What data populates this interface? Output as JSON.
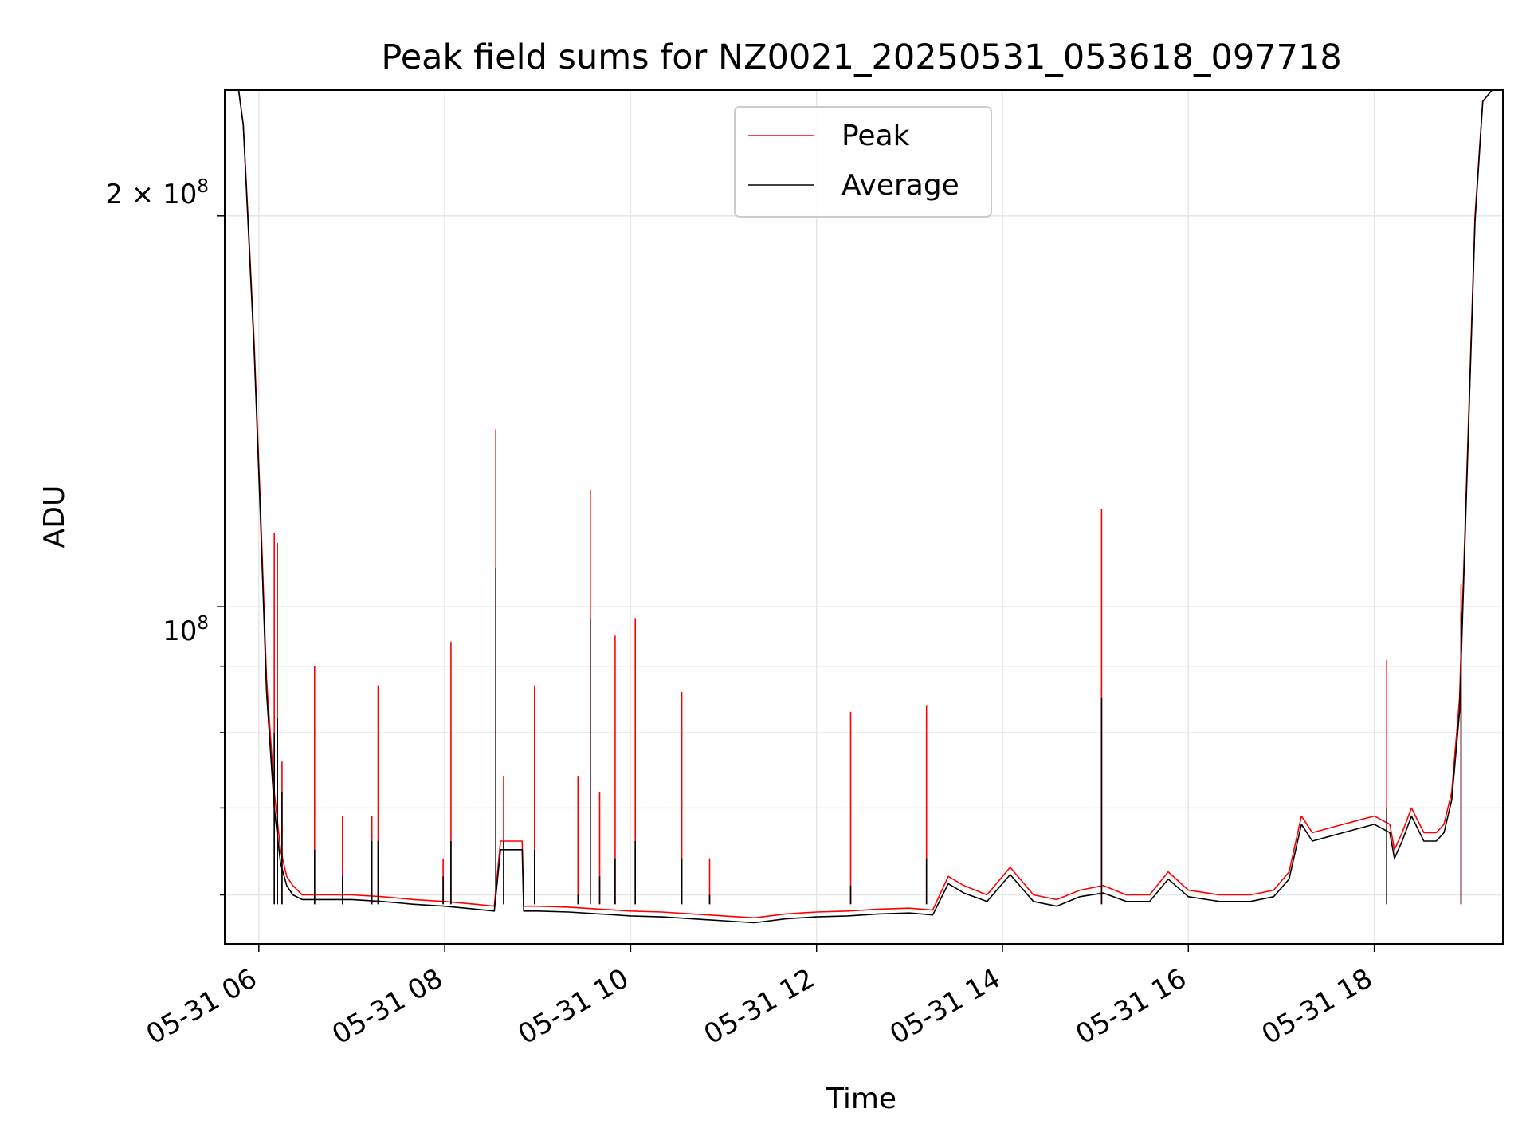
{
  "chart_data": {
    "type": "line",
    "title": "Peak field sums for NZ0021_20250531_053618_097718",
    "xlabel": "Time",
    "ylabel": "ADU",
    "yscale": "log",
    "xlim": [
      "2025-05-31 05:38",
      "2025-05-31 19:23"
    ],
    "ylim": [
      55000000,
      250000000
    ],
    "x_ticks": [
      "05-31 06",
      "05-31 08",
      "05-31 10",
      "05-31 12",
      "05-31 14",
      "05-31 16",
      "05-31 18"
    ],
    "y_tick_labels": [
      "2 × 10^8",
      "10^8"
    ],
    "grid": true,
    "legend_position": "top-center",
    "series": [
      {
        "name": "Peak",
        "color": "#ff0000",
        "x": [
          "2025-05-31 05:36",
          "2025-05-31 05:47",
          "2025-05-31 05:50",
          "2025-05-31 05:53",
          "2025-05-31 05:57",
          "2025-05-31 06:01",
          "2025-05-31 06:05",
          "2025-05-31 06:10",
          "2025-05-31 06:14",
          "2025-05-31 06:18",
          "2025-05-31 06:22",
          "2025-05-31 06:28",
          "2025-05-31 06:35",
          "2025-05-31 06:45",
          "2025-05-31 07:00",
          "2025-05-31 07:20",
          "2025-05-31 07:40",
          "2025-05-31 08:00",
          "2025-05-31 08:20",
          "2025-05-31 08:32",
          "2025-05-31 08:36",
          "2025-05-31 08:42",
          "2025-05-31 08:50",
          "2025-05-31 08:51",
          "2025-05-31 09:00",
          "2025-05-31 09:20",
          "2025-05-31 09:40",
          "2025-05-31 10:00",
          "2025-05-31 10:20",
          "2025-05-31 10:40",
          "2025-05-31 11:00",
          "2025-05-31 11:20",
          "2025-05-31 11:40",
          "2025-05-31 12:00",
          "2025-05-31 12:20",
          "2025-05-31 12:40",
          "2025-05-31 13:00",
          "2025-05-31 13:15",
          "2025-05-31 13:25",
          "2025-05-31 13:35",
          "2025-05-31 13:50",
          "2025-05-31 14:05",
          "2025-05-31 14:20",
          "2025-05-31 14:35",
          "2025-05-31 14:50",
          "2025-05-31 15:05",
          "2025-05-31 15:20",
          "2025-05-31 15:35",
          "2025-05-31 15:47",
          "2025-05-31 16:00",
          "2025-05-31 16:20",
          "2025-05-31 16:40",
          "2025-05-31 16:55",
          "2025-05-31 17:05",
          "2025-05-31 17:13",
          "2025-05-31 17:20",
          "2025-05-31 17:30",
          "2025-05-31 17:40",
          "2025-05-31 17:50",
          "2025-05-31 18:00",
          "2025-05-31 18:10",
          "2025-05-31 18:13",
          "2025-05-31 18:18",
          "2025-05-31 18:24",
          "2025-05-31 18:32",
          "2025-05-31 18:40",
          "2025-05-31 18:45",
          "2025-05-31 18:50",
          "2025-05-31 18:55",
          "2025-05-31 19:00",
          "2025-05-31 19:05",
          "2025-05-31 19:10",
          "2025-05-31 19:16",
          "2025-05-31 19:23"
        ],
        "y": [
          250000000,
          250000000,
          235000000,
          200000000,
          160000000,
          120000000,
          88000000,
          72000000,
          65000000,
          62000000,
          61000000,
          60000000,
          60000000,
          60000000,
          60000000,
          59800000,
          59500000,
          59300000,
          59000000,
          58800000,
          66000000,
          66000000,
          66000000,
          58800000,
          58800000,
          58700000,
          58500000,
          58300000,
          58200000,
          58000000,
          57800000,
          57600000,
          58000000,
          58200000,
          58300000,
          58500000,
          58600000,
          58400000,
          62000000,
          61000000,
          60000000,
          63000000,
          60000000,
          59500000,
          60500000,
          61000000,
          60000000,
          60000000,
          62500000,
          60500000,
          60000000,
          60000000,
          60500000,
          62500000,
          69000000,
          67000000,
          67500000,
          68000000,
          68500000,
          69000000,
          68000000,
          65000000,
          67000000,
          70000000,
          67000000,
          67000000,
          68000000,
          72000000,
          85000000,
          130000000,
          200000000,
          245000000,
          250000000,
          250000000
        ]
      },
      {
        "name": "Average",
        "color": "#000000",
        "x": [
          "2025-05-31 05:36",
          "2025-05-31 05:47",
          "2025-05-31 05:50",
          "2025-05-31 05:53",
          "2025-05-31 05:57",
          "2025-05-31 06:01",
          "2025-05-31 06:05",
          "2025-05-31 06:10",
          "2025-05-31 06:14",
          "2025-05-31 06:18",
          "2025-05-31 06:22",
          "2025-05-31 06:28",
          "2025-05-31 06:35",
          "2025-05-31 06:45",
          "2025-05-31 07:00",
          "2025-05-31 07:20",
          "2025-05-31 07:40",
          "2025-05-31 08:00",
          "2025-05-31 08:20",
          "2025-05-31 08:32",
          "2025-05-31 08:36",
          "2025-05-31 08:42",
          "2025-05-31 08:50",
          "2025-05-31 08:51",
          "2025-05-31 09:00",
          "2025-05-31 09:20",
          "2025-05-31 09:40",
          "2025-05-31 10:00",
          "2025-05-31 10:20",
          "2025-05-31 10:40",
          "2025-05-31 11:00",
          "2025-05-31 11:20",
          "2025-05-31 11:40",
          "2025-05-31 12:00",
          "2025-05-31 12:20",
          "2025-05-31 12:40",
          "2025-05-31 13:00",
          "2025-05-31 13:15",
          "2025-05-31 13:25",
          "2025-05-31 13:35",
          "2025-05-31 13:50",
          "2025-05-31 14:05",
          "2025-05-31 14:20",
          "2025-05-31 14:35",
          "2025-05-31 14:50",
          "2025-05-31 15:05",
          "2025-05-31 15:20",
          "2025-05-31 15:35",
          "2025-05-31 15:47",
          "2025-05-31 16:00",
          "2025-05-31 16:20",
          "2025-05-31 16:40",
          "2025-05-31 16:55",
          "2025-05-31 17:05",
          "2025-05-31 17:13",
          "2025-05-31 17:20",
          "2025-05-31 17:30",
          "2025-05-31 17:40",
          "2025-05-31 17:50",
          "2025-05-31 18:00",
          "2025-05-31 18:10",
          "2025-05-31 18:13",
          "2025-05-31 18:18",
          "2025-05-31 18:24",
          "2025-05-31 18:32",
          "2025-05-31 18:40",
          "2025-05-31 18:45",
          "2025-05-31 18:50",
          "2025-05-31 18:55",
          "2025-05-31 19:00",
          "2025-05-31 19:05",
          "2025-05-31 19:10",
          "2025-05-31 19:16",
          "2025-05-31 19:23"
        ],
        "y": [
          250000000,
          250000000,
          235000000,
          198000000,
          158000000,
          118000000,
          86000000,
          70000000,
          63500000,
          61000000,
          60000000,
          59500000,
          59500000,
          59500000,
          59500000,
          59300000,
          59000000,
          58800000,
          58500000,
          58300000,
          65000000,
          65000000,
          65000000,
          58300000,
          58300000,
          58200000,
          58000000,
          57800000,
          57700000,
          57500000,
          57300000,
          57100000,
          57500000,
          57700000,
          57800000,
          58000000,
          58100000,
          57900000,
          61200000,
          60200000,
          59300000,
          62200000,
          59300000,
          58800000,
          59800000,
          60200000,
          59300000,
          59300000,
          61700000,
          59800000,
          59300000,
          59300000,
          59800000,
          61700000,
          68000000,
          66000000,
          66500000,
          67000000,
          67500000,
          68000000,
          67000000,
          64000000,
          66000000,
          69000000,
          66000000,
          66000000,
          67000000,
          71000000,
          83000000,
          128000000,
          198000000,
          245000000,
          250000000,
          250000000
        ]
      }
    ],
    "spikes": [
      {
        "x": "2025-05-31 06:10",
        "peak": 114000000,
        "average": 80000000
      },
      {
        "x": "2025-05-31 06:12",
        "peak": 112000000,
        "average": 82000000
      },
      {
        "x": "2025-05-31 06:15",
        "peak": 76000000,
        "average": 72000000
      },
      {
        "x": "2025-05-31 06:36",
        "peak": 90000000,
        "average": 65000000
      },
      {
        "x": "2025-05-31 06:54",
        "peak": 69000000,
        "average": 62000000
      },
      {
        "x": "2025-05-31 07:13",
        "peak": 69000000,
        "average": 66000000
      },
      {
        "x": "2025-05-31 07:17",
        "peak": 87000000,
        "average": 66000000
      },
      {
        "x": "2025-05-31 07:59",
        "peak": 64000000,
        "average": 62000000
      },
      {
        "x": "2025-05-31 08:04",
        "peak": 94000000,
        "average": 66000000
      },
      {
        "x": "2025-05-31 08:33",
        "peak": 137000000,
        "average": 107000000
      },
      {
        "x": "2025-05-31 08:38",
        "peak": 74000000,
        "average": 66000000
      },
      {
        "x": "2025-05-31 08:58",
        "peak": 87000000,
        "average": 65000000
      },
      {
        "x": "2025-05-31 09:26",
        "peak": 74000000,
        "average": 60000000
      },
      {
        "x": "2025-05-31 09:34",
        "peak": 123000000,
        "average": 98000000
      },
      {
        "x": "2025-05-31 09:40",
        "peak": 72000000,
        "average": 62000000
      },
      {
        "x": "2025-05-31 09:50",
        "peak": 95000000,
        "average": 64000000
      },
      {
        "x": "2025-05-31 10:03",
        "peak": 98000000,
        "average": 66000000
      },
      {
        "x": "2025-05-31 10:33",
        "peak": 86000000,
        "average": 64000000
      },
      {
        "x": "2025-05-31 10:51",
        "peak": 64000000,
        "average": 60000000
      },
      {
        "x": "2025-05-31 12:22",
        "peak": 83000000,
        "average": 61000000
      },
      {
        "x": "2025-05-31 13:11",
        "peak": 84000000,
        "average": 64000000
      },
      {
        "x": "2025-05-31 15:04",
        "peak": 119000000,
        "average": 85000000
      },
      {
        "x": "2025-05-31 18:08",
        "peak": 91000000,
        "average": 70000000
      },
      {
        "x": "2025-05-31 18:56",
        "peak": 104000000,
        "average": 99000000
      }
    ]
  },
  "legend": {
    "peak_label": "Peak",
    "average_label": "Average"
  }
}
